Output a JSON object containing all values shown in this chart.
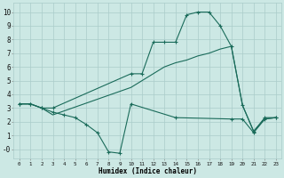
{
  "xlabel": "Humidex (Indice chaleur)",
  "bg_color": "#cce8e4",
  "grid_color": "#aaccca",
  "line_color": "#1a6b5a",
  "xlim": [
    -0.5,
    23.5
  ],
  "ylim": [
    -0.7,
    10.7
  ],
  "xticks": [
    0,
    1,
    2,
    3,
    4,
    5,
    6,
    7,
    8,
    9,
    10,
    11,
    12,
    13,
    14,
    15,
    16,
    17,
    18,
    19,
    20,
    21,
    22,
    23
  ],
  "yticks": [
    0,
    1,
    2,
    3,
    4,
    5,
    6,
    7,
    8,
    9,
    10
  ],
  "yticklabels": [
    "-0",
    "1",
    "2",
    "3",
    "4",
    "5",
    "6",
    "7",
    "8",
    "9",
    "10"
  ],
  "line1_x": [
    0,
    1,
    2,
    3,
    10,
    11,
    12,
    13,
    14,
    15,
    16,
    17,
    18,
    19,
    20,
    21,
    22,
    23
  ],
  "line1_y": [
    3.3,
    3.3,
    3.0,
    3.0,
    5.5,
    5.5,
    7.8,
    7.8,
    7.8,
    9.8,
    10.0,
    10.0,
    9.0,
    7.5,
    3.2,
    1.3,
    2.3,
    2.3
  ],
  "line2_x": [
    0,
    1,
    2,
    3,
    4,
    5,
    6,
    7,
    8,
    9,
    10,
    14,
    19,
    20,
    21,
    22,
    23
  ],
  "line2_y": [
    3.3,
    3.3,
    3.0,
    2.7,
    2.5,
    2.3,
    1.8,
    1.2,
    -0.2,
    -0.3,
    3.3,
    2.3,
    2.2,
    2.2,
    1.2,
    2.2,
    2.3
  ],
  "line3_x": [
    0,
    1,
    2,
    3,
    10,
    12,
    13,
    14,
    15,
    16,
    17,
    18,
    19,
    20,
    21,
    22,
    23
  ],
  "line3_y": [
    3.3,
    3.3,
    3.0,
    2.5,
    4.5,
    5.5,
    6.0,
    6.3,
    6.5,
    6.8,
    7.0,
    7.3,
    7.5,
    3.2,
    1.3,
    2.2,
    2.3
  ]
}
